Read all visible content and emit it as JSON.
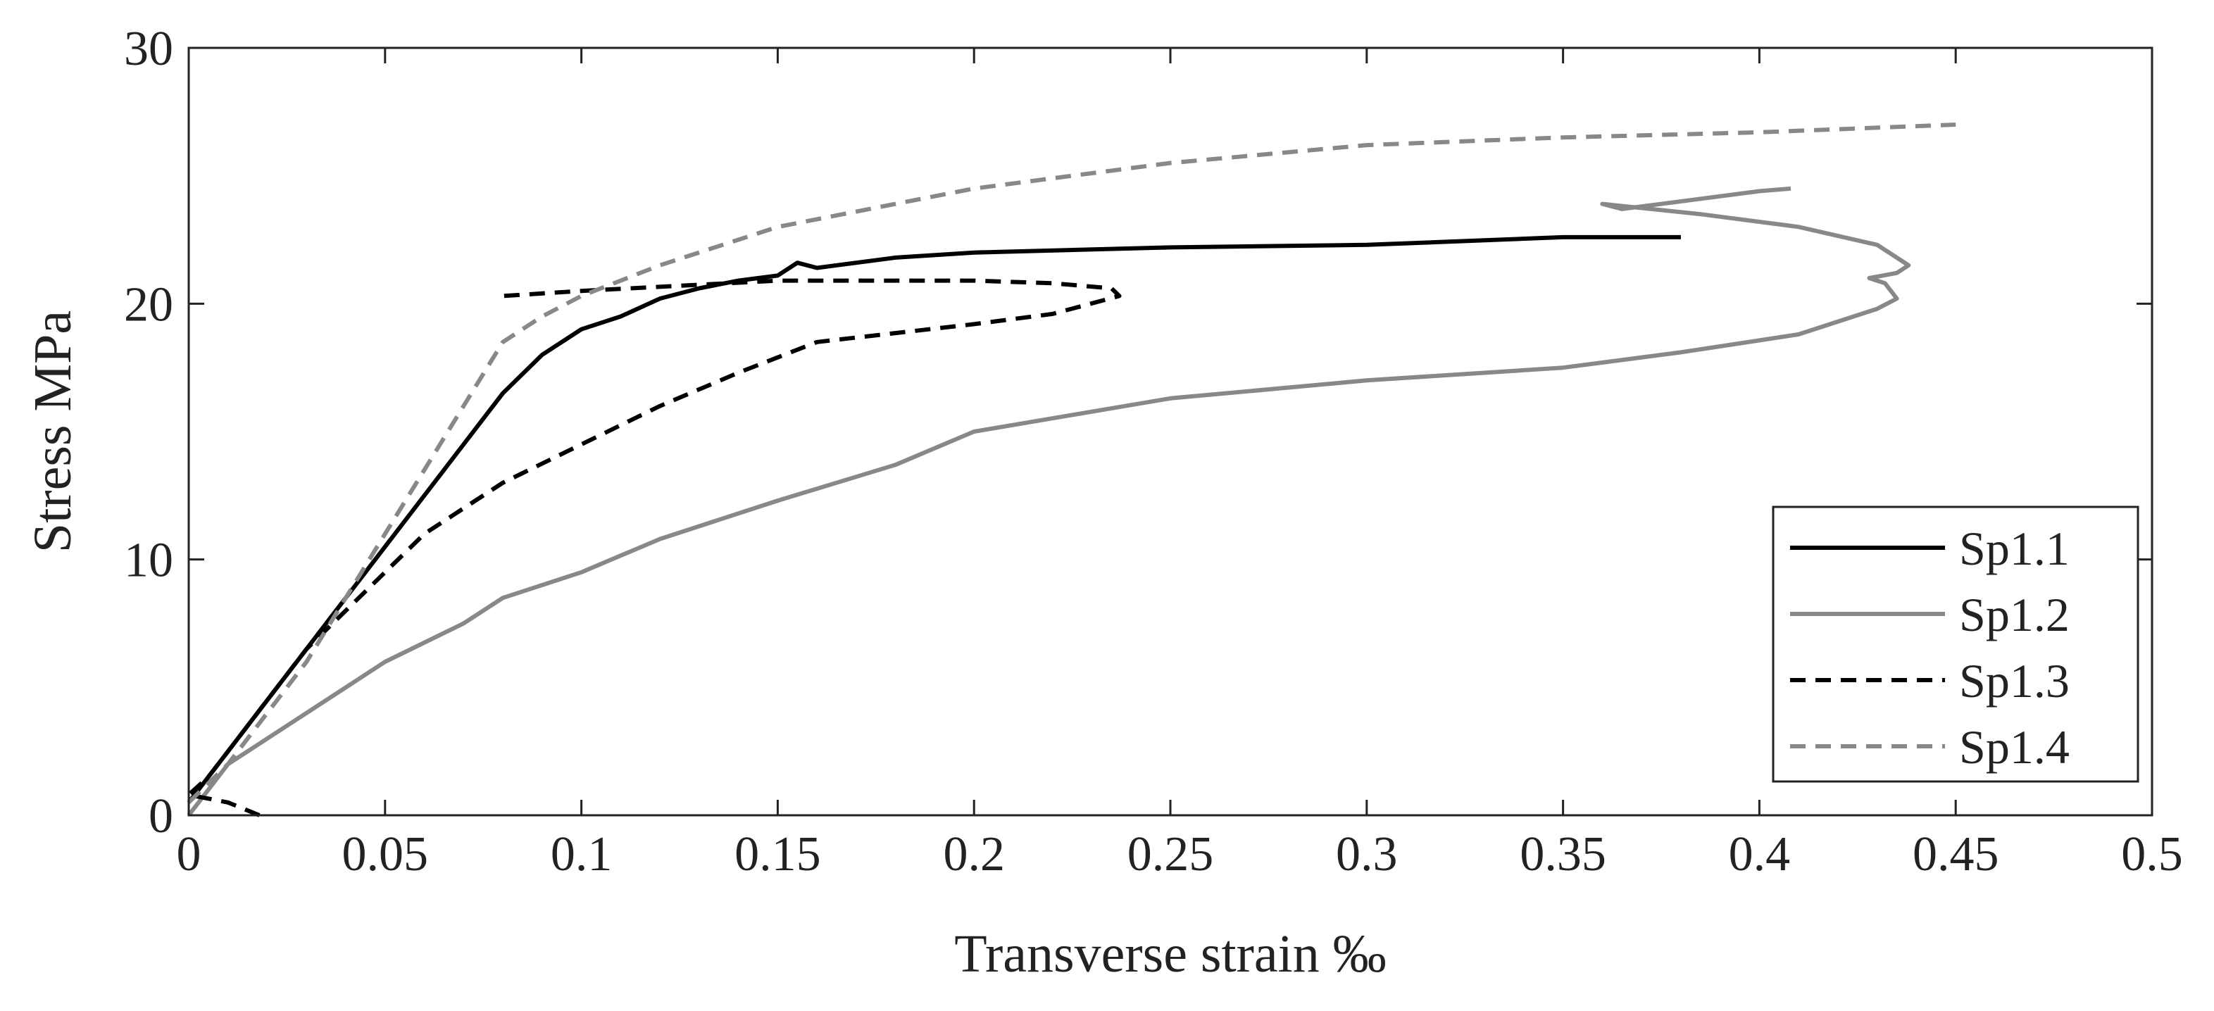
{
  "chart_data": {
    "type": "line",
    "title": "",
    "xlabel": "Transverse strain ‰",
    "ylabel": "Stress MPa",
    "xlim": [
      0,
      0.5
    ],
    "ylim": [
      0,
      30
    ],
    "xticks": [
      0,
      0.05,
      0.1,
      0.15,
      0.2,
      0.25,
      0.3,
      0.35,
      0.4,
      0.45,
      0.5
    ],
    "xtick_labels": [
      "0",
      "0.05",
      "0.1",
      "0.15",
      "0.2",
      "0.25",
      "0.3",
      "0.35",
      "0.4",
      "0.45",
      "0.5"
    ],
    "yticks": [
      0,
      10,
      20,
      30
    ],
    "ytick_labels": [
      "0",
      "10",
      "20",
      "30"
    ],
    "grid": false,
    "legend_position": "bottom-right",
    "series": [
      {
        "name": "Sp1.1",
        "color": "#000000",
        "dash": "solid",
        "x": [
          0,
          0.005,
          0.01,
          0.02,
          0.03,
          0.04,
          0.05,
          0.06,
          0.07,
          0.08,
          0.09,
          0.1,
          0.11,
          0.12,
          0.13,
          0.14,
          0.15,
          0.155,
          0.16,
          0.18,
          0.2,
          0.25,
          0.3,
          0.35,
          0.38
        ],
        "y": [
          0.5,
          1.5,
          2.5,
          4.5,
          6.5,
          8.5,
          10.5,
          12.5,
          14.5,
          16.5,
          18,
          19,
          19.5,
          20.2,
          20.6,
          20.9,
          21.1,
          21.6,
          21.4,
          21.8,
          22,
          22.2,
          22.3,
          22.6,
          22.6
        ]
      },
      {
        "name": "Sp1.2",
        "color": "#888888",
        "dash": "solid",
        "x": [
          0,
          0.01,
          0.03,
          0.05,
          0.07,
          0.08,
          0.1,
          0.12,
          0.15,
          0.18,
          0.2,
          0.25,
          0.3,
          0.35,
          0.38,
          0.41,
          0.43,
          0.435,
          0.432,
          0.428,
          0.435,
          0.438,
          0.43,
          0.41,
          0.385,
          0.36,
          0.365,
          0.4,
          0.408
        ],
        "y": [
          0,
          2,
          4,
          6,
          7.5,
          8.5,
          9.5,
          10.8,
          12.3,
          13.7,
          15,
          16.3,
          17,
          17.5,
          18.1,
          18.8,
          19.8,
          20.2,
          20.8,
          21,
          21.2,
          21.5,
          22.3,
          23,
          23.5,
          23.9,
          23.7,
          24.4,
          24.5
        ]
      },
      {
        "name": "Sp1.3",
        "color": "#000000",
        "dash": "dashed",
        "x": [
          0.018,
          0.01,
          0,
          0.005,
          0.01,
          0.02,
          0.03,
          0.04,
          0.05,
          0.06,
          0.07,
          0.08,
          0.1,
          0.12,
          0.14,
          0.16,
          0.2,
          0.22,
          0.237,
          0.235,
          0.22,
          0.2,
          0.15,
          0.1,
          0.08
        ],
        "y": [
          0,
          0.5,
          0.8,
          1.5,
          2.5,
          4.5,
          6.5,
          8,
          9.5,
          11,
          12,
          13,
          14.5,
          16,
          17.3,
          18.5,
          19.2,
          19.6,
          20.3,
          20.6,
          20.8,
          20.9,
          20.9,
          20.5,
          20.3
        ]
      },
      {
        "name": "Sp1.4",
        "color": "#888888",
        "dash": "dashed",
        "x": [
          0,
          0.01,
          0.02,
          0.03,
          0.04,
          0.05,
          0.06,
          0.07,
          0.08,
          0.09,
          0.1,
          0.12,
          0.15,
          0.2,
          0.25,
          0.3,
          0.35,
          0.4,
          0.45
        ],
        "y": [
          0.5,
          2,
          4,
          6,
          8.5,
          11,
          13.5,
          16,
          18.5,
          19.5,
          20.3,
          21.5,
          23,
          24.5,
          25.5,
          26.2,
          26.5,
          26.7,
          27
        ]
      }
    ]
  }
}
